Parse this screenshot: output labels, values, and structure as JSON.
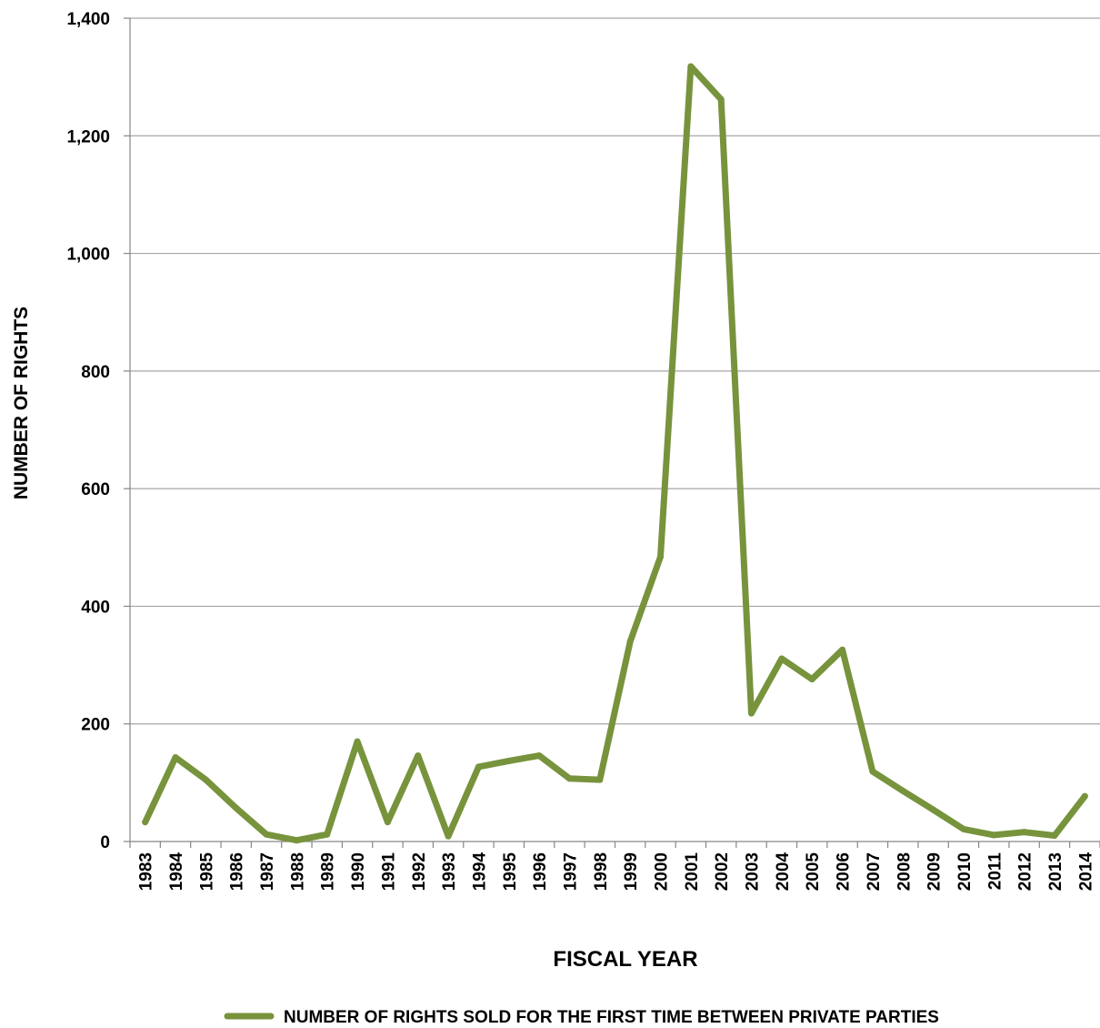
{
  "chart_data": {
    "type": "line",
    "title": "",
    "xlabel": "FISCAL YEAR",
    "ylabel": "NUMBER  OF  RIGHTS",
    "ylim": [
      0,
      1400
    ],
    "yticks": [
      0,
      200,
      400,
      600,
      800,
      1000,
      1200,
      1400
    ],
    "ytick_labels": [
      "0",
      "200",
      "400",
      "600",
      "800",
      "1,000",
      "1,200",
      "1,400"
    ],
    "grid": "horizontal",
    "legend_position": "bottom",
    "categories": [
      "1983",
      "1984",
      "1985",
      "1986",
      "1987",
      "1988",
      "1989",
      "1990",
      "1991",
      "1992",
      "1993",
      "1994",
      "1995",
      "1996",
      "1997",
      "1998",
      "1999",
      "2000",
      "2001",
      "2002",
      "2003",
      "2004",
      "2005",
      "2006",
      "2007",
      "2008",
      "2009",
      "2010",
      "2011",
      "2012",
      "2013",
      "2014"
    ],
    "series": [
      {
        "name": "NUMBER OF RIGHTS SOLD FOR THE FIRST TIME BETWEEN PRIVATE PARTIES",
        "color": "#77933c",
        "values": [
          33,
          143,
          105,
          57,
          12,
          2,
          12,
          170,
          33,
          146,
          9,
          127,
          137,
          146,
          107,
          105,
          340,
          484,
          1318,
          1262,
          218,
          311,
          276,
          326,
          119,
          86,
          54,
          21,
          11,
          16,
          10,
          77
        ]
      }
    ]
  }
}
